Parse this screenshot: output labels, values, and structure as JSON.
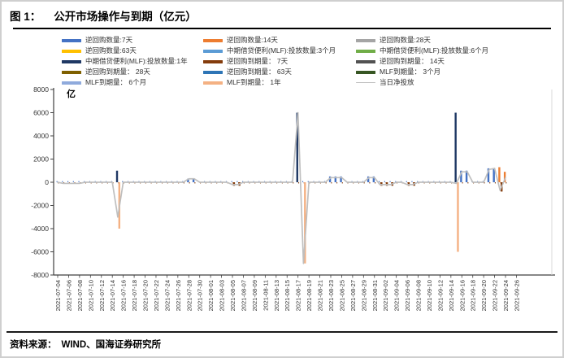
{
  "header": {
    "figure_label": "图 1：",
    "title": "公开市场操作与到期（亿元）"
  },
  "footer": {
    "label": "资料来源：",
    "text": "WIND、国海证券研究所"
  },
  "chart_data": {
    "type": "bar",
    "subtype": "clustered-bars-with-net-line",
    "unit_label": "亿",
    "ylim": [
      -8000,
      8000
    ],
    "ytick_step": 2000,
    "yticks": [
      8000,
      6000,
      4000,
      2000,
      0,
      -2000,
      -4000,
      -6000,
      -8000
    ],
    "grid": "off",
    "legend_position": "top",
    "x_start": "2021-07-04",
    "x_end": "2021-09-26",
    "x_tick_labels": [
      "2021-07-04",
      "2021-07-06",
      "2021-07-08",
      "2021-07-10",
      "2021-07-12",
      "2021-07-14",
      "2021-07-16",
      "2021-07-18",
      "2021-07-20",
      "2021-07-22",
      "2021-07-24",
      "2021-07-26",
      "2021-07-28",
      "2021-07-30",
      "2021-08-01",
      "2021-08-03",
      "2021-08-05",
      "2021-08-07",
      "2021-08-09",
      "2021-08-11",
      "2021-08-13",
      "2021-08-15",
      "2021-08-17",
      "2021-08-19",
      "2021-08-21",
      "2021-08-23",
      "2021-08-25",
      "2021-08-27",
      "2021-08-29",
      "2021-08-31",
      "2021-09-02",
      "2021-09-04",
      "2021-09-06",
      "2021-09-08",
      "2021-09-10",
      "2021-09-12",
      "2021-09-14",
      "2021-09-16",
      "2021-09-18",
      "2021-09-20",
      "2021-09-22",
      "2021-09-24",
      "2021-09-26"
    ],
    "legend": [
      {
        "label": "逆回购数量:7天",
        "color": "#4472C4",
        "type": "bar"
      },
      {
        "label": "逆回购数量:63天",
        "color": "#FFC000",
        "type": "bar"
      },
      {
        "label": "中期借贷便利(MLF):投放数量:1年",
        "color": "#1F3864",
        "type": "bar"
      },
      {
        "label": "逆回购到期量： 28天",
        "color": "#7F6000",
        "type": "bar"
      },
      {
        "label": "MLF到期量： 6个月",
        "color": "#8FAADC",
        "type": "bar"
      },
      {
        "label": "逆回购数量:14天",
        "color": "#ED7D31",
        "type": "bar"
      },
      {
        "label": "中期借贷便利(MLF):投放数量:3个月",
        "color": "#5B9BD5",
        "type": "bar"
      },
      {
        "label": "逆回购到期量： 7天",
        "color": "#843C0C",
        "type": "bar"
      },
      {
        "label": "逆回购到期量： 63天",
        "color": "#2E75B6",
        "type": "bar"
      },
      {
        "label": "MLF到期量： 1年",
        "color": "#F4B183",
        "type": "bar"
      },
      {
        "label": "逆回购数量:28天",
        "color": "#A5A5A5",
        "type": "bar"
      },
      {
        "label": "中期借贷便利(MLF):投放数量:6个月",
        "color": "#70AD47",
        "type": "bar"
      },
      {
        "label": "逆回购到期量： 14天",
        "color": "#525252",
        "type": "bar"
      },
      {
        "label": "MLF到期量： 3个月",
        "color": "#375623",
        "type": "bar"
      },
      {
        "label": "当日净投放",
        "color": "#BFBFBF",
        "type": "line"
      }
    ],
    "micro_bars": {
      "up_series": "逆回购数量:7天",
      "up_value": 100,
      "down_series": "逆回购到期量： 7天",
      "down_value": -100,
      "days": 83
    },
    "bar_events": [
      {
        "date": "2021-07-15",
        "series": "中期借贷便利(MLF):投放数量:1年",
        "value": 1000
      },
      {
        "date": "2021-07-15",
        "series": "MLF到期量： 1年",
        "value": -4000
      },
      {
        "date": "2021-07-28",
        "series": "逆回购数量:7天",
        "value": 300
      },
      {
        "date": "2021-07-29",
        "series": "逆回购数量:7天",
        "value": 300
      },
      {
        "date": "2021-08-05",
        "series": "逆回购到期量： 7天",
        "value": -300
      },
      {
        "date": "2021-08-06",
        "series": "逆回购到期量： 7天",
        "value": -300
      },
      {
        "date": "2021-08-17",
        "series": "中期借贷便利(MLF):投放数量:1年",
        "value": 6000
      },
      {
        "date": "2021-08-18",
        "series": "MLF到期量： 1年",
        "value": -7000
      },
      {
        "date": "2021-08-23",
        "series": "逆回购数量:7天",
        "value": 500
      },
      {
        "date": "2021-08-24",
        "series": "逆回购数量:7天",
        "value": 500
      },
      {
        "date": "2021-08-25",
        "series": "逆回购数量:7天",
        "value": 500
      },
      {
        "date": "2021-08-30",
        "series": "逆回购数量:7天",
        "value": 500
      },
      {
        "date": "2021-08-31",
        "series": "逆回购数量:7天",
        "value": 500
      },
      {
        "date": "2021-09-01",
        "series": "逆回购到期量： 7天",
        "value": -300
      },
      {
        "date": "2021-09-02",
        "series": "逆回购到期量： 7天",
        "value": -300
      },
      {
        "date": "2021-09-03",
        "series": "逆回购到期量： 7天",
        "value": -300
      },
      {
        "date": "2021-09-06",
        "series": "逆回购到期量： 7天",
        "value": -300
      },
      {
        "date": "2021-09-07",
        "series": "逆回购到期量： 7天",
        "value": -300
      },
      {
        "date": "2021-09-15",
        "series": "中期借贷便利(MLF):投放数量:1年",
        "value": 6000
      },
      {
        "date": "2021-09-15",
        "series": "MLF到期量： 1年",
        "value": -6000
      },
      {
        "date": "2021-09-16",
        "series": "逆回购数量:7天",
        "value": 1000
      },
      {
        "date": "2021-09-17",
        "series": "逆回购数量:7天",
        "value": 1000
      },
      {
        "date": "2021-09-21",
        "series": "逆回购数量:7天",
        "value": 1200
      },
      {
        "date": "2021-09-22",
        "series": "逆回购数量:7天",
        "value": 1200
      },
      {
        "date": "2021-09-23",
        "series": "逆回购数量:14天",
        "value": 1300
      },
      {
        "date": "2021-09-23",
        "series": "逆回购到期量： 7天",
        "value": -800
      },
      {
        "date": "2021-09-24",
        "series": "逆回购数量:14天",
        "value": 900
      }
    ],
    "net_line": {
      "name": "当日净投放",
      "color": "#BFBFBF",
      "daily_values": [
        0,
        -100,
        -100,
        -100,
        -100,
        0,
        0,
        0,
        0,
        0,
        0,
        -3000,
        0,
        0,
        0,
        0,
        0,
        0,
        0,
        0,
        0,
        0,
        0,
        0,
        300,
        300,
        0,
        0,
        0,
        0,
        0,
        0,
        -200,
        -200,
        0,
        0,
        0,
        0,
        0,
        0,
        0,
        0,
        0,
        0,
        6000,
        -7000,
        0,
        0,
        0,
        0,
        400,
        400,
        400,
        0,
        0,
        0,
        0,
        400,
        400,
        -200,
        -200,
        -200,
        0,
        0,
        -200,
        -200,
        0,
        0,
        0,
        0,
        0,
        0,
        0,
        -100,
        900,
        900,
        0,
        0,
        0,
        1100,
        1200,
        -700,
        400
      ]
    }
  }
}
